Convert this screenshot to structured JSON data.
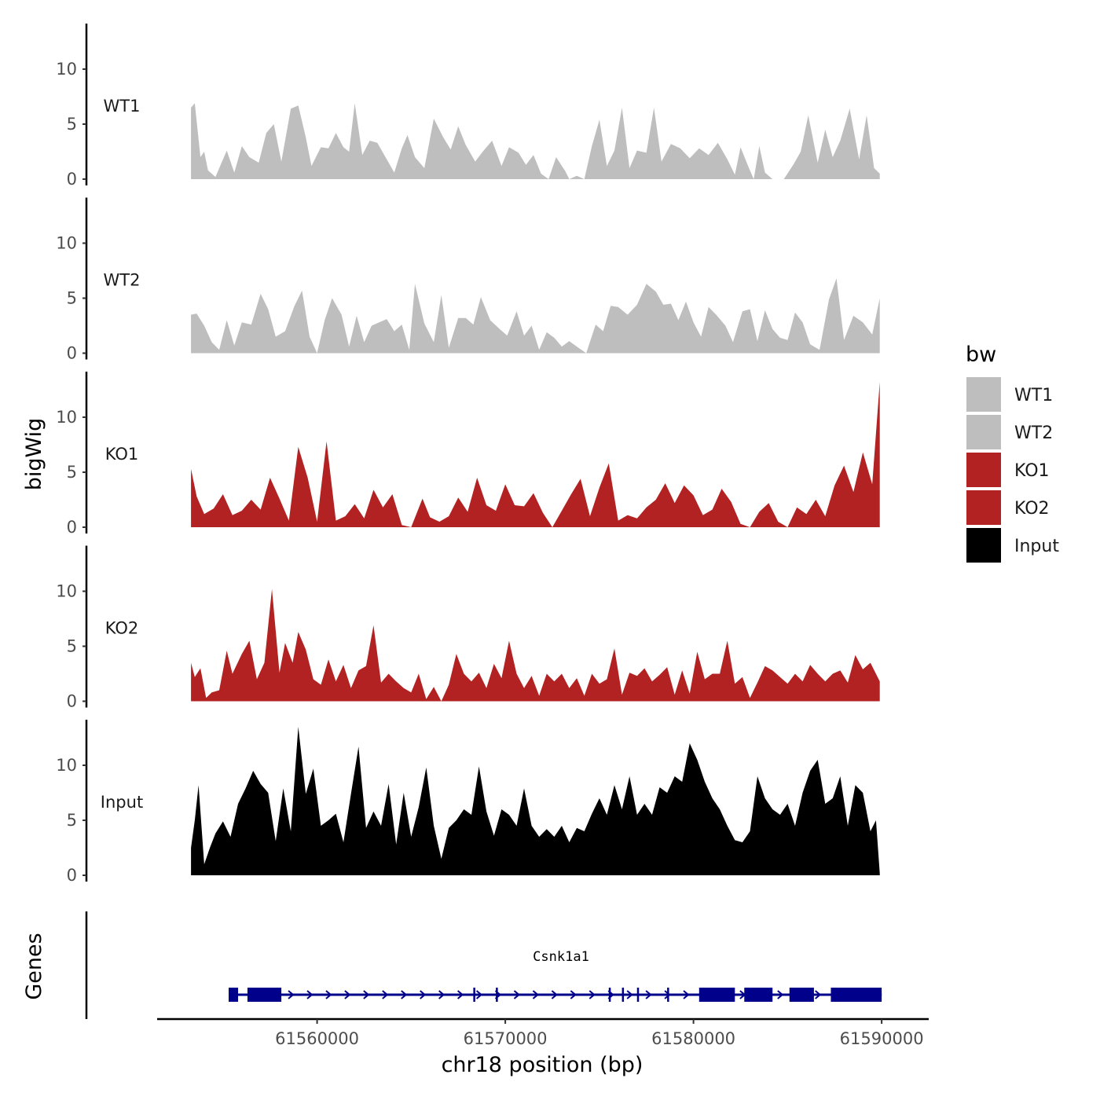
{
  "chart_data": {
    "type": "area",
    "ylabel": "bigWig",
    "xlabel": "chr18 position (bp)",
    "ylim": [
      0,
      14
    ],
    "yticks": [
      0,
      5,
      10
    ],
    "xlim": [
      61551500,
      61592500
    ],
    "xticks": [
      61560000,
      61570000,
      61580000,
      61590000
    ],
    "xtick_labels": [
      "61560000",
      "61570000",
      "61580000",
      "61590000"
    ],
    "legend": {
      "title": "bw",
      "placement": "right",
      "entries": [
        {
          "label": "WT1",
          "color": "#bebebe"
        },
        {
          "label": "WT2",
          "color": "#bebebe"
        },
        {
          "label": "KO1",
          "color": "#b22222"
        },
        {
          "label": "KO2",
          "color": "#b22222"
        },
        {
          "label": "Input",
          "color": "#000000"
        }
      ]
    },
    "series": [
      {
        "name": "WT1",
        "color": "#bebebe",
        "x": [
          61553300,
          61553500,
          61553800,
          61554000,
          61554200,
          61554600,
          61555200,
          61555600,
          61556000,
          61556400,
          61556900,
          61557300,
          61557700,
          61558100,
          61558600,
          61559000,
          61559400,
          61559700,
          61560200,
          61560600,
          61561000,
          61561400,
          61561700,
          61562000,
          61562400,
          61562800,
          61563200,
          61563700,
          61564100,
          61564500,
          61564800,
          61565200,
          61565700,
          61566200,
          61566700,
          61567100,
          61567500,
          61567900,
          61568400,
          61568800,
          61569300,
          61569800,
          61570200,
          61570700,
          61571100,
          61571500,
          61571900,
          61572300,
          61572700,
          61573200,
          61573400,
          61573800,
          61574200,
          61574600,
          61575000,
          61575400,
          61575800,
          61576200,
          61576600,
          61577000,
          61577500,
          61577900,
          61578300,
          61578800,
          61579300,
          61579800,
          61580300,
          61580800,
          61581300,
          61581800,
          61582200,
          61582500,
          61582900,
          61583200,
          61583500,
          61583800,
          61584200,
          61584800,
          61585300,
          61585700,
          61586100,
          61586600,
          61587000,
          61587400,
          61587800,
          61588300,
          61588800,
          61589200,
          61589600,
          61589900
        ],
        "y": [
          6.5,
          6.9,
          2.0,
          2.5,
          0.8,
          0.2,
          2.6,
          0.6,
          3.0,
          2.0,
          1.5,
          4.2,
          5.0,
          1.6,
          6.4,
          6.7,
          3.8,
          1.2,
          2.9,
          2.8,
          4.2,
          2.9,
          2.5,
          6.9,
          2.2,
          3.5,
          3.3,
          1.8,
          0.6,
          2.8,
          4.0,
          2.0,
          1.0,
          5.5,
          3.8,
          2.7,
          4.8,
          3.1,
          1.6,
          2.5,
          3.5,
          1.2,
          2.9,
          2.4,
          1.3,
          2.2,
          0.5,
          0.0,
          2.0,
          0.7,
          0.0,
          0.3,
          0.0,
          3.0,
          5.4,
          1.2,
          2.6,
          6.5,
          1.0,
          2.6,
          2.4,
          6.5,
          1.6,
          3.2,
          2.8,
          1.9,
          2.8,
          2.2,
          3.3,
          1.8,
          0.4,
          2.9,
          1.2,
          0.0,
          3.0,
          0.6,
          0.0,
          0.0,
          1.3,
          2.5,
          5.8,
          1.5,
          4.5,
          2.0,
          3.5,
          6.4,
          1.8,
          5.8,
          1.0,
          0.5
        ]
      },
      {
        "name": "WT2",
        "color": "#bebebe",
        "x": [
          61553300,
          61553600,
          61554000,
          61554400,
          61554800,
          61555200,
          61555600,
          61556000,
          61556500,
          61557000,
          61557400,
          61557800,
          61558300,
          61558800,
          61559200,
          61559600,
          61560000,
          61560400,
          61560800,
          61561300,
          61561700,
          61562100,
          61562500,
          61562900,
          61563300,
          61563700,
          61564100,
          61564500,
          61564900,
          61565200,
          61565700,
          61566200,
          61566600,
          61567000,
          61567500,
          61567900,
          61568300,
          61568700,
          61569200,
          61569700,
          61570100,
          61570600,
          61571000,
          61571400,
          61571800,
          61572200,
          61572600,
          61573000,
          61573400,
          61573800,
          61574300,
          61574800,
          61575200,
          61575600,
          61576000,
          61576500,
          61577000,
          61577500,
          61578000,
          61578400,
          61578800,
          61579200,
          61579600,
          61580000,
          61580400,
          61580800,
          61581200,
          61581700,
          61582100,
          61582600,
          61583000,
          61583400,
          61583800,
          61584200,
          61584600,
          61585000,
          61585400,
          61585800,
          61586200,
          61586700,
          61587200,
          61587600,
          61588000,
          61588500,
          61589000,
          61589500,
          61589900
        ],
        "y": [
          3.5,
          3.6,
          2.5,
          1.0,
          0.3,
          3.0,
          0.7,
          2.8,
          2.6,
          5.4,
          4.0,
          1.5,
          2.0,
          4.3,
          5.7,
          1.5,
          0.0,
          3.0,
          5.0,
          3.5,
          0.6,
          3.4,
          1.0,
          2.5,
          2.8,
          3.1,
          2.0,
          2.6,
          0.3,
          6.3,
          2.7,
          1.0,
          5.3,
          0.5,
          3.2,
          3.2,
          2.6,
          5.1,
          3.0,
          2.2,
          1.6,
          3.8,
          1.6,
          2.5,
          0.3,
          1.9,
          1.4,
          0.6,
          1.1,
          0.6,
          0.0,
          2.6,
          2.0,
          4.3,
          4.2,
          3.5,
          4.4,
          6.3,
          5.6,
          4.4,
          4.5,
          3.0,
          4.7,
          2.8,
          1.5,
          4.2,
          3.5,
          2.5,
          1.0,
          3.8,
          4.0,
          1.1,
          3.9,
          2.2,
          1.4,
          1.2,
          3.7,
          2.8,
          0.8,
          0.3,
          4.9,
          6.8,
          1.2,
          3.4,
          2.8,
          1.7,
          5.0
        ]
      },
      {
        "name": "KO1",
        "color": "#b22222",
        "x": [
          61553300,
          61553600,
          61554000,
          61554500,
          61555000,
          61555500,
          61556000,
          61556500,
          61557000,
          61557500,
          61558000,
          61558500,
          61559000,
          61559500,
          61560000,
          61560500,
          61561000,
          61561500,
          61562000,
          61562500,
          61563000,
          61563500,
          61564000,
          61564500,
          61565000,
          61565600,
          61566000,
          61566500,
          61567000,
          61567500,
          61568000,
          61568500,
          61569000,
          61569500,
          61570000,
          61570500,
          61571000,
          61571500,
          61572000,
          61572500,
          61573000,
          61573500,
          61574000,
          61574500,
          61575000,
          61575500,
          61576000,
          61576500,
          61577000,
          61577500,
          61578000,
          61578500,
          61579000,
          61579500,
          61580000,
          61580500,
          61581000,
          61581500,
          61582000,
          61582500,
          61583000,
          61583500,
          61584000,
          61584500,
          61585000,
          61585500,
          61586000,
          61586500,
          61587000,
          61587500,
          61588000,
          61588500,
          61589000,
          61589500,
          61589900
        ],
        "y": [
          5.3,
          2.8,
          1.2,
          1.7,
          3.0,
          1.1,
          1.5,
          2.5,
          1.6,
          4.5,
          2.6,
          0.6,
          7.3,
          4.5,
          0.5,
          7.8,
          0.6,
          1.0,
          2.1,
          0.8,
          3.4,
          1.8,
          3.0,
          0.2,
          0.0,
          2.6,
          0.9,
          0.5,
          1.0,
          2.7,
          1.4,
          4.5,
          2.0,
          1.5,
          3.9,
          2.0,
          1.9,
          3.1,
          1.3,
          0.0,
          1.5,
          3.0,
          4.4,
          1.0,
          3.6,
          5.8,
          0.6,
          1.1,
          0.8,
          1.8,
          2.5,
          4.0,
          2.2,
          3.8,
          2.9,
          1.1,
          1.6,
          3.5,
          2.3,
          0.3,
          0.0,
          1.4,
          2.2,
          0.5,
          0.0,
          1.8,
          1.2,
          2.5,
          1.0,
          3.8,
          5.6,
          3.2,
          6.8,
          3.9,
          13.2
        ]
      },
      {
        "name": "KO2",
        "color": "#b22222",
        "x": [
          61553300,
          61553500,
          61553800,
          61554100,
          61554400,
          61554800,
          61555200,
          61555500,
          61556000,
          61556400,
          61556800,
          61557200,
          61557600,
          61558000,
          61558300,
          61558700,
          61559000,
          61559400,
          61559800,
          61560200,
          61560600,
          61561000,
          61561400,
          61561800,
          61562200,
          61562600,
          61563000,
          61563400,
          61563800,
          61564200,
          61564600,
          61565000,
          61565400,
          61565800,
          61566200,
          61566600,
          61567000,
          61567400,
          61567800,
          61568200,
          61568600,
          61569000,
          61569400,
          61569800,
          61570200,
          61570600,
          61571000,
          61571400,
          61571800,
          61572200,
          61572600,
          61573000,
          61573400,
          61573800,
          61574200,
          61574600,
          61575000,
          61575400,
          61575800,
          61576200,
          61576600,
          61577000,
          61577400,
          61577800,
          61578200,
          61578600,
          61579000,
          61579400,
          61579800,
          61580200,
          61580600,
          61581000,
          61581400,
          61581800,
          61582200,
          61582600,
          61583000,
          61583400,
          61583800,
          61584200,
          61584600,
          61585000,
          61585400,
          61585800,
          61586200,
          61586600,
          61587000,
          61587400,
          61587800,
          61588200,
          61588600,
          61589000,
          61589400,
          61589900
        ],
        "y": [
          3.5,
          2.2,
          3.0,
          0.3,
          0.8,
          1.0,
          4.6,
          2.5,
          4.3,
          5.5,
          2.0,
          3.5,
          10.2,
          2.6,
          5.3,
          3.5,
          6.3,
          4.7,
          2.0,
          1.5,
          3.8,
          1.8,
          3.3,
          1.2,
          2.8,
          3.2,
          6.9,
          1.7,
          2.5,
          1.8,
          1.2,
          0.8,
          2.5,
          0.2,
          1.3,
          0.0,
          1.5,
          4.3,
          2.5,
          1.8,
          2.6,
          1.2,
          3.4,
          2.1,
          5.5,
          2.5,
          1.2,
          2.3,
          0.5,
          2.5,
          1.8,
          2.5,
          1.2,
          2.1,
          0.5,
          2.5,
          1.6,
          2.0,
          4.8,
          0.6,
          2.6,
          2.3,
          3.0,
          1.8,
          2.4,
          3.1,
          0.6,
          2.8,
          0.7,
          4.5,
          2.0,
          2.5,
          2.5,
          5.5,
          1.6,
          2.2,
          0.3,
          1.7,
          3.2,
          2.8,
          2.2,
          1.6,
          2.5,
          1.8,
          3.3,
          2.5,
          1.8,
          2.5,
          2.8,
          1.7,
          4.2,
          2.9,
          3.5,
          1.8
        ]
      },
      {
        "name": "Input",
        "color": "#000000",
        "x": [
          61553300,
          61553500,
          61553700,
          61554000,
          61554300,
          61554600,
          61555000,
          61555400,
          61555800,
          61556200,
          61556600,
          61557000,
          61557400,
          61557800,
          61558200,
          61558600,
          61559000,
          61559400,
          61559800,
          61560200,
          61560600,
          61561000,
          61561400,
          61561800,
          61562200,
          61562600,
          61563000,
          61563400,
          61563800,
          61564200,
          61564600,
          61565000,
          61565400,
          61565800,
          61566200,
          61566600,
          61567000,
          61567400,
          61567800,
          61568200,
          61568600,
          61569000,
          61569400,
          61569800,
          61570200,
          61570600,
          61571000,
          61571400,
          61571800,
          61572200,
          61572600,
          61573000,
          61573400,
          61573800,
          61574200,
          61574600,
          61575000,
          61575400,
          61575800,
          61576200,
          61576600,
          61577000,
          61577400,
          61577800,
          61578200,
          61578600,
          61579000,
          61579400,
          61579800,
          61580200,
          61580600,
          61581000,
          61581400,
          61581800,
          61582200,
          61582600,
          61583000,
          61583400,
          61583800,
          61584200,
          61584600,
          61585000,
          61585400,
          61585800,
          61586200,
          61586600,
          61587000,
          61587400,
          61587800,
          61588200,
          61588600,
          61589000,
          61589400,
          61589700,
          61589900
        ],
        "y": [
          2.5,
          5.0,
          8.2,
          1.0,
          2.5,
          3.8,
          4.9,
          3.5,
          6.5,
          7.9,
          9.5,
          8.3,
          7.5,
          3.1,
          7.9,
          4.0,
          13.5,
          7.4,
          9.7,
          4.5,
          5.0,
          5.6,
          3.0,
          7.4,
          11.7,
          4.3,
          5.8,
          4.5,
          8.3,
          2.8,
          7.5,
          3.5,
          6.2,
          9.8,
          4.5,
          1.5,
          4.3,
          5.0,
          6.0,
          5.5,
          9.9,
          5.8,
          3.6,
          6.0,
          5.5,
          4.5,
          7.9,
          4.5,
          3.5,
          4.2,
          3.5,
          4.5,
          3.0,
          4.3,
          4.0,
          5.6,
          7.0,
          5.5,
          8.2,
          6.0,
          9.0,
          5.5,
          6.5,
          5.5,
          8.0,
          7.5,
          9.0,
          8.5,
          12.0,
          10.5,
          8.5,
          7.0,
          6.0,
          4.5,
          3.2,
          3.0,
          4.0,
          9.0,
          7.0,
          6.0,
          5.5,
          6.5,
          4.5,
          7.5,
          9.5,
          10.5,
          6.5,
          7.0,
          9.0,
          4.5,
          8.2,
          7.5,
          4.0,
          5.0,
          0.2
        ]
      }
    ],
    "genes_track": {
      "label": "Genes",
      "gene_name": "Csnk1a1",
      "strand": "+",
      "start": 61555300,
      "end": 61590000,
      "exons": [
        {
          "start": 61555300,
          "end": 61555800
        },
        {
          "start": 61556300,
          "end": 61558100
        },
        {
          "start": 61568300,
          "end": 61568400
        },
        {
          "start": 61569500,
          "end": 61569600
        },
        {
          "start": 61575500,
          "end": 61575600
        },
        {
          "start": 61576200,
          "end": 61576250
        },
        {
          "start": 61577000,
          "end": 61577050
        },
        {
          "start": 61578600,
          "end": 61578700
        },
        {
          "start": 61580300,
          "end": 61582200
        },
        {
          "start": 61582700,
          "end": 61584200
        },
        {
          "start": 61585100,
          "end": 61586400
        },
        {
          "start": 61587300,
          "end": 61590000
        }
      ]
    }
  }
}
